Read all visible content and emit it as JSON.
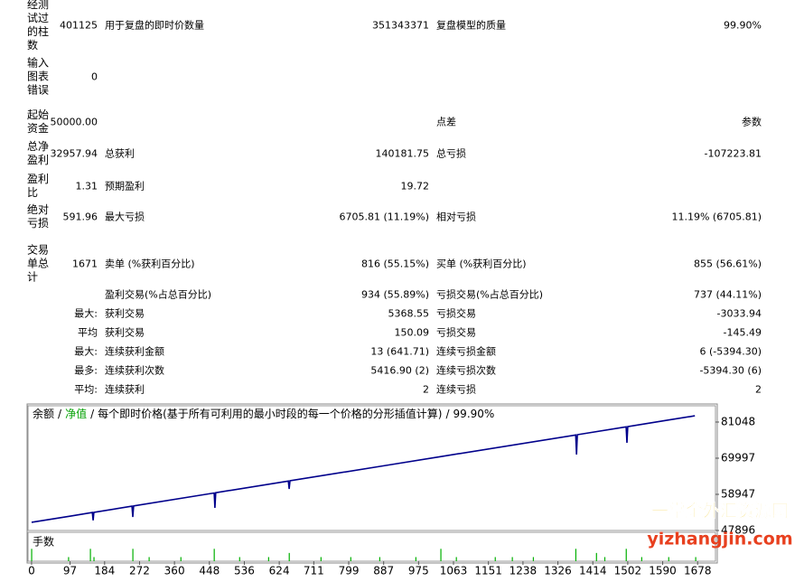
{
  "report": {
    "rows": [
      {
        "name": "经测试过的柱数",
        "value": "401125",
        "name2": "用于复盘的即时价数量",
        "value2": "351343371",
        "name3": "复盘模型的质量",
        "value3": "99.90%"
      },
      {
        "name": "输入图表错误",
        "value": "0"
      },
      {
        "name": "起始资金",
        "value": "50000.00",
        "name3": "点差",
        "value3": "参数"
      },
      {
        "name": "总净盈利",
        "value": "32957.94",
        "name2": "总获利",
        "value2": "140181.75",
        "name3": "总亏损",
        "value3": "-107223.81"
      },
      {
        "name": "盈利比",
        "value": "1.31",
        "name2": "预期盈利",
        "value2": "19.72"
      },
      {
        "name": "绝对亏损",
        "value": "591.96",
        "name2": "最大亏损",
        "value2": "6705.81 (11.19%)",
        "name3": "相对亏损",
        "value3": "11.19% (6705.81)"
      },
      {
        "name": "交易单总计",
        "value": "1671",
        "name2": "卖单 (%获利百分比)",
        "value2": "816 (55.15%)",
        "name3": "买单 (%获利百分比)",
        "value3": "855 (56.61%)"
      },
      {
        "name2": "盈利交易(%占总百分比)",
        "value2": "934 (55.89%)",
        "name3": "亏损交易(%占总百分比)",
        "value3": "737 (44.11%)"
      },
      {
        "value": "最大:",
        "name2": "获利交易",
        "value2": "5368.55",
        "name3": "亏损交易",
        "value3": "-3033.94"
      },
      {
        "value": "平均",
        "name2": "获利交易",
        "value2": "150.09",
        "name3": "亏损交易",
        "value3": "-145.49"
      },
      {
        "value": "最大:",
        "name2": "连续获利金额",
        "value2": "13 (641.71)",
        "name3": "连续亏损金额",
        "value3": "6 (-5394.30)"
      },
      {
        "value": "最多:",
        "name2": "连续获利次数",
        "value2": "5416.90 (2)",
        "name3": "连续亏损次数",
        "value3": "-5394.30 (6)"
      },
      {
        "value": "平均:",
        "name2": "连续获利",
        "value2": "2",
        "name3": "连续亏损",
        "value3": "2"
      }
    ]
  },
  "chart_data": {
    "type": "line",
    "separator": "/",
    "equity_name": "净值",
    "equity_color": "#00a000",
    "model_note": "每个即时价格(基于所有可利用的最小时段的每一个价格的分形插值计算)",
    "quality": "99.90%",
    "series": [
      {
        "name": "余额",
        "color": "#00008b",
        "x": [
          0,
          100,
          153,
          155,
          157,
          253,
          255,
          257,
          460,
          462,
          464,
          647,
          649,
          651,
          900,
          1030,
          1371,
          1373,
          1375,
          1498,
          1500,
          1502,
          1600,
          1671
        ],
        "values": [
          50400,
          52350,
          53380,
          51000,
          53450,
          55330,
          52000,
          55400,
          59360,
          54800,
          59440,
          63000,
          60600,
          63080,
          67930,
          70460,
          77100,
          71100,
          77180,
          79580,
          74700,
          79650,
          81570,
          82958
        ]
      }
    ],
    "xlim": [
      -9,
      1723
    ],
    "xticks": [
      0,
      97,
      184,
      272,
      360,
      448,
      536,
      624,
      711,
      799,
      887,
      975,
      1063,
      1151,
      1238,
      1326,
      1414,
      1502,
      1590,
      1678
    ],
    "ylim": [
      47896,
      86020
    ],
    "yticks": [
      47896,
      58947,
      69997,
      81048
    ],
    "volume": {
      "title": "手数",
      "color": "#00b000",
      "ylim": [
        0,
        0.7
      ],
      "x": [
        0,
        93,
        148,
        157,
        255,
        296,
        376,
        460,
        524,
        597,
        649,
        729,
        804,
        877,
        968,
        1031,
        1070,
        1168,
        1211,
        1264,
        1371,
        1423,
        1444,
        1498,
        1537,
        1605,
        1673
      ],
      "values": [
        0.3,
        0.1,
        0.3,
        0.1,
        0.3,
        0.1,
        0.1,
        0.3,
        0.1,
        0.1,
        0.2,
        0.1,
        0.1,
        0.1,
        0.1,
        0.3,
        0.1,
        0.1,
        0.1,
        0.1,
        0.3,
        0.2,
        0.1,
        0.3,
        0.1,
        0.1,
        0.1
      ]
    }
  },
  "watermark": {
    "title": "一掌金外汇资源网",
    "site": "yizhangjin.com"
  }
}
